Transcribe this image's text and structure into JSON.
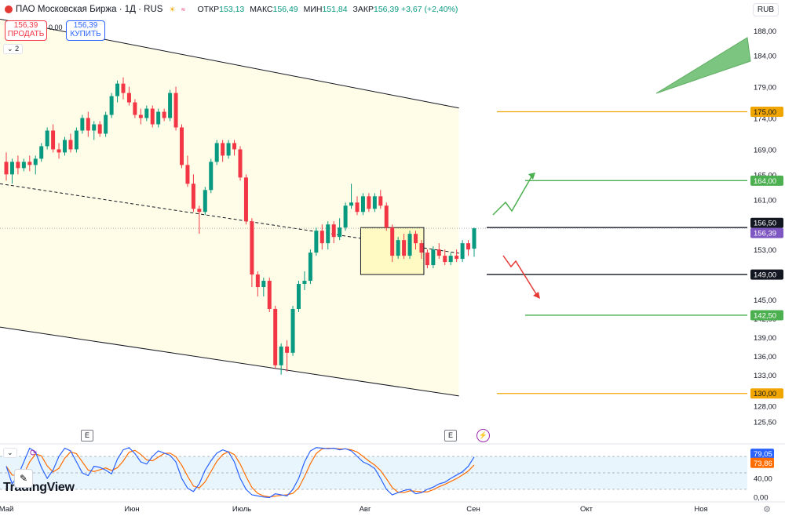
{
  "header": {
    "symbol": "ПАО Московская Биржа · 1Д · RUS",
    "open_label": "ОТКР",
    "open": "153,13",
    "high_label": "МАКС",
    "high": "156,49",
    "low_label": "МИН",
    "low": "151,84",
    "close_label": "ЗАКР",
    "close": "156,39",
    "change": "+3,67 (+2,40%)"
  },
  "currency": "RUB",
  "trade": {
    "sell_price": "156,39",
    "sell_label": "ПРОДАТЬ",
    "spread": "0,00",
    "buy_price": "156,39",
    "buy_label": "КУПИТЬ"
  },
  "pane_count": "2",
  "brand": "TradingView",
  "events": [
    "E",
    "E"
  ],
  "icons": {
    "logo": "moex-logo-icon",
    "market": "market-status-icon",
    "bolt": "lightning-icon",
    "draw": "pencil-icon",
    "gear": "gear-icon",
    "stoch": "refresh-icon"
  },
  "colors": {
    "up": "#089981",
    "down": "#f23645",
    "orange": "#f0a500",
    "green_level": "#4caf50",
    "purple_label": "#7e57c2",
    "stoch_k": "#2962ff",
    "stoch_d": "#ff6d00"
  },
  "chart_data": {
    "type": "candlestick",
    "ylim": [
      122.7,
      190.1
    ],
    "price_ticks": [
      "188,00",
      "184,00",
      "179,00",
      "174,00",
      "169,00",
      "165,00",
      "161,00",
      "157,00",
      "153,00",
      "149,00",
      "145,00",
      "142,00",
      "139,00",
      "136,00",
      "133,00",
      "128,00",
      "125,50"
    ],
    "month_labels": [
      "Май",
      "Июн",
      "Июль",
      "Авг",
      "Сен",
      "Окт",
      "Ноя"
    ],
    "level_labels": [
      {
        "value": "175,00",
        "color": "orange"
      },
      {
        "value": "164,00",
        "color": "green"
      },
      {
        "value": "156,50",
        "color": "black"
      },
      {
        "value": "156,39",
        "color": "purple"
      },
      {
        "value": "149,00",
        "color": "black"
      },
      {
        "value": "142,50",
        "color": "green"
      },
      {
        "value": "130,00",
        "color": "orange"
      }
    ],
    "candles_ohlc": [
      [
        167.0,
        168.5,
        164.0,
        165.0
      ],
      [
        165.0,
        167.5,
        163.5,
        167.0
      ],
      [
        167.0,
        168.0,
        165.0,
        166.0
      ],
      [
        166.0,
        167.5,
        165.5,
        167.0
      ],
      [
        167.0,
        168.0,
        165.5,
        166.5
      ],
      [
        166.5,
        168.0,
        165.0,
        167.5
      ],
      [
        167.5,
        170.0,
        167.0,
        169.5
      ],
      [
        169.5,
        172.5,
        169.0,
        172.0
      ],
      [
        172.0,
        173.0,
        168.5,
        169.0
      ],
      [
        169.0,
        170.0,
        167.5,
        168.5
      ],
      [
        168.5,
        171.0,
        168.0,
        170.5
      ],
      [
        170.5,
        171.5,
        168.5,
        169.0
      ],
      [
        169.0,
        172.5,
        168.5,
        172.0
      ],
      [
        172.0,
        174.5,
        171.5,
        174.0
      ],
      [
        174.0,
        175.0,
        171.0,
        172.0
      ],
      [
        172.0,
        173.5,
        170.5,
        173.0
      ],
      [
        173.0,
        173.5,
        171.0,
        171.5
      ],
      [
        171.5,
        175.0,
        171.0,
        174.5
      ],
      [
        174.5,
        178.0,
        174.0,
        177.5
      ],
      [
        177.5,
        180.0,
        176.5,
        179.5
      ],
      [
        179.5,
        180.5,
        177.0,
        178.0
      ],
      [
        178.0,
        179.0,
        176.0,
        176.5
      ],
      [
        176.5,
        177.0,
        174.0,
        174.5
      ],
      [
        174.5,
        175.5,
        173.0,
        174.0
      ],
      [
        174.0,
        176.0,
        173.5,
        175.5
      ],
      [
        175.5,
        176.0,
        172.5,
        173.0
      ],
      [
        173.0,
        175.5,
        172.5,
        175.0
      ],
      [
        175.0,
        175.5,
        173.5,
        174.0
      ],
      [
        174.0,
        178.5,
        173.5,
        178.0
      ],
      [
        178.0,
        179.0,
        172.0,
        172.5
      ],
      [
        172.5,
        173.0,
        166.0,
        166.5
      ],
      [
        166.5,
        168.0,
        163.0,
        163.5
      ],
      [
        163.5,
        165.0,
        159.0,
        159.5
      ],
      [
        159.5,
        160.0,
        155.5,
        159.0
      ],
      [
        159.0,
        163.0,
        158.5,
        162.5
      ],
      [
        162.5,
        167.5,
        162.0,
        167.0
      ],
      [
        167.0,
        170.5,
        166.5,
        170.0
      ],
      [
        170.0,
        170.5,
        167.0,
        168.0
      ],
      [
        168.0,
        170.5,
        167.5,
        170.0
      ],
      [
        170.0,
        170.5,
        168.0,
        169.0
      ],
      [
        169.0,
        169.5,
        164.0,
        164.5
      ],
      [
        164.5,
        165.0,
        157.0,
        157.5
      ],
      [
        157.5,
        158.0,
        147.0,
        149.0
      ],
      [
        149.0,
        149.5,
        145.5,
        147.0
      ],
      [
        147.0,
        148.5,
        145.5,
        148.0
      ],
      [
        148.0,
        148.5,
        143.0,
        143.5
      ],
      [
        143.5,
        144.0,
        134.0,
        134.5
      ],
      [
        134.5,
        138.0,
        133.0,
        137.5
      ],
      [
        137.5,
        138.5,
        133.5,
        136.5
      ],
      [
        136.5,
        144.0,
        136.0,
        143.5
      ],
      [
        143.5,
        148.0,
        143.0,
        147.5
      ],
      [
        147.5,
        149.5,
        146.5,
        148.0
      ],
      [
        148.0,
        153.0,
        147.5,
        152.5
      ],
      [
        152.5,
        156.5,
        152.0,
        156.0
      ],
      [
        156.0,
        157.0,
        153.0,
        154.0
      ],
      [
        154.0,
        157.5,
        153.0,
        157.0
      ],
      [
        157.0,
        157.5,
        154.0,
        155.0
      ],
      [
        155.0,
        158.0,
        154.5,
        156.5
      ],
      [
        156.5,
        160.5,
        156.0,
        160.0
      ],
      [
        160.0,
        163.5,
        159.5,
        160.5
      ],
      [
        160.5,
        161.5,
        158.5,
        159.0
      ],
      [
        159.0,
        162.0,
        158.5,
        161.5
      ],
      [
        161.5,
        162.0,
        159.0,
        159.5
      ],
      [
        159.5,
        162.0,
        159.0,
        161.5
      ],
      [
        161.5,
        162.5,
        159.5,
        160.0
      ],
      [
        160.0,
        160.5,
        156.0,
        156.5
      ],
      [
        156.5,
        157.0,
        151.0,
        152.0
      ],
      [
        152.0,
        155.0,
        151.5,
        154.5
      ],
      [
        154.5,
        155.5,
        151.5,
        152.0
      ],
      [
        152.0,
        156.0,
        151.5,
        155.5
      ],
      [
        155.5,
        156.0,
        153.0,
        154.0
      ],
      [
        154.0,
        154.5,
        151.5,
        152.5
      ],
      [
        152.5,
        153.0,
        150.0,
        150.5
      ],
      [
        150.5,
        153.5,
        150.0,
        153.0
      ],
      [
        153.0,
        154.0,
        151.5,
        152.0
      ],
      [
        152.0,
        153.0,
        150.5,
        151.0
      ],
      [
        151.0,
        152.5,
        150.5,
        152.0
      ],
      [
        152.0,
        153.0,
        151.0,
        151.5
      ],
      [
        151.5,
        154.5,
        151.0,
        154.0
      ],
      [
        154.0,
        154.5,
        152.0,
        153.0
      ],
      [
        153.13,
        156.49,
        151.84,
        156.39
      ]
    ],
    "channel": {
      "upper": [
        [
          0,
          189.8
        ],
        [
          77,
          175.6
        ]
      ],
      "lower": [
        [
          0,
          140.6
        ],
        [
          77,
          129.6
        ]
      ],
      "mid": [
        [
          0,
          163.5
        ],
        [
          77,
          152.4
        ]
      ]
    },
    "range_box": {
      "x0": 61,
      "x1": 71,
      "top": 156.5,
      "bottom": 149.0
    },
    "stochastic": {
      "ylim": [
        0,
        100
      ],
      "ticks": [
        "79,05",
        "73,86",
        "40,00",
        "0,00"
      ],
      "upper_band": 80,
      "lower_band": 20,
      "mid_band": 50
    }
  }
}
